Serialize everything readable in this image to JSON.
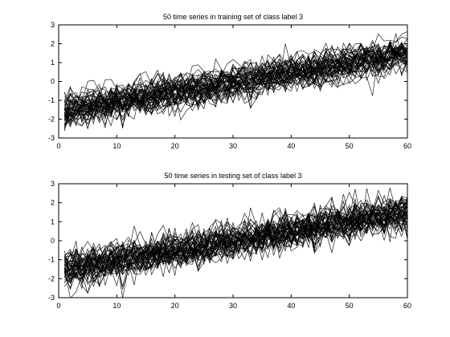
{
  "chart_data": [
    {
      "type": "line",
      "title": "50 time series in training set of class label 3",
      "xlabel": "",
      "ylabel": "",
      "xlim": [
        0,
        60
      ],
      "ylim": [
        -3,
        3
      ],
      "xticks": [
        "0",
        "10",
        "20",
        "30",
        "40",
        "50",
        "60"
      ],
      "yticks": [
        "3",
        "2",
        "1",
        "0",
        "-1",
        "-2",
        "-3"
      ],
      "grid": false,
      "series_count": 50,
      "trend": {
        "x_start": 1,
        "y_start": -1.5,
        "x_end": 60,
        "y_end": 1.5,
        "noise_sd": 0.4
      },
      "line_color": "#000000"
    },
    {
      "type": "line",
      "title": "50 time series in testing set of class label 3",
      "xlabel": "",
      "ylabel": "",
      "xlim": [
        0,
        60
      ],
      "ylim": [
        -3,
        3
      ],
      "xticks": [
        "0",
        "10",
        "20",
        "30",
        "40",
        "50",
        "60"
      ],
      "yticks": [
        "3",
        "2",
        "1",
        "0",
        "-1",
        "-2",
        "-3"
      ],
      "grid": false,
      "series_count": 50,
      "trend": {
        "x_start": 1,
        "y_start": -1.5,
        "x_end": 60,
        "y_end": 1.5,
        "noise_sd": 0.45
      },
      "line_color": "#000000"
    }
  ]
}
